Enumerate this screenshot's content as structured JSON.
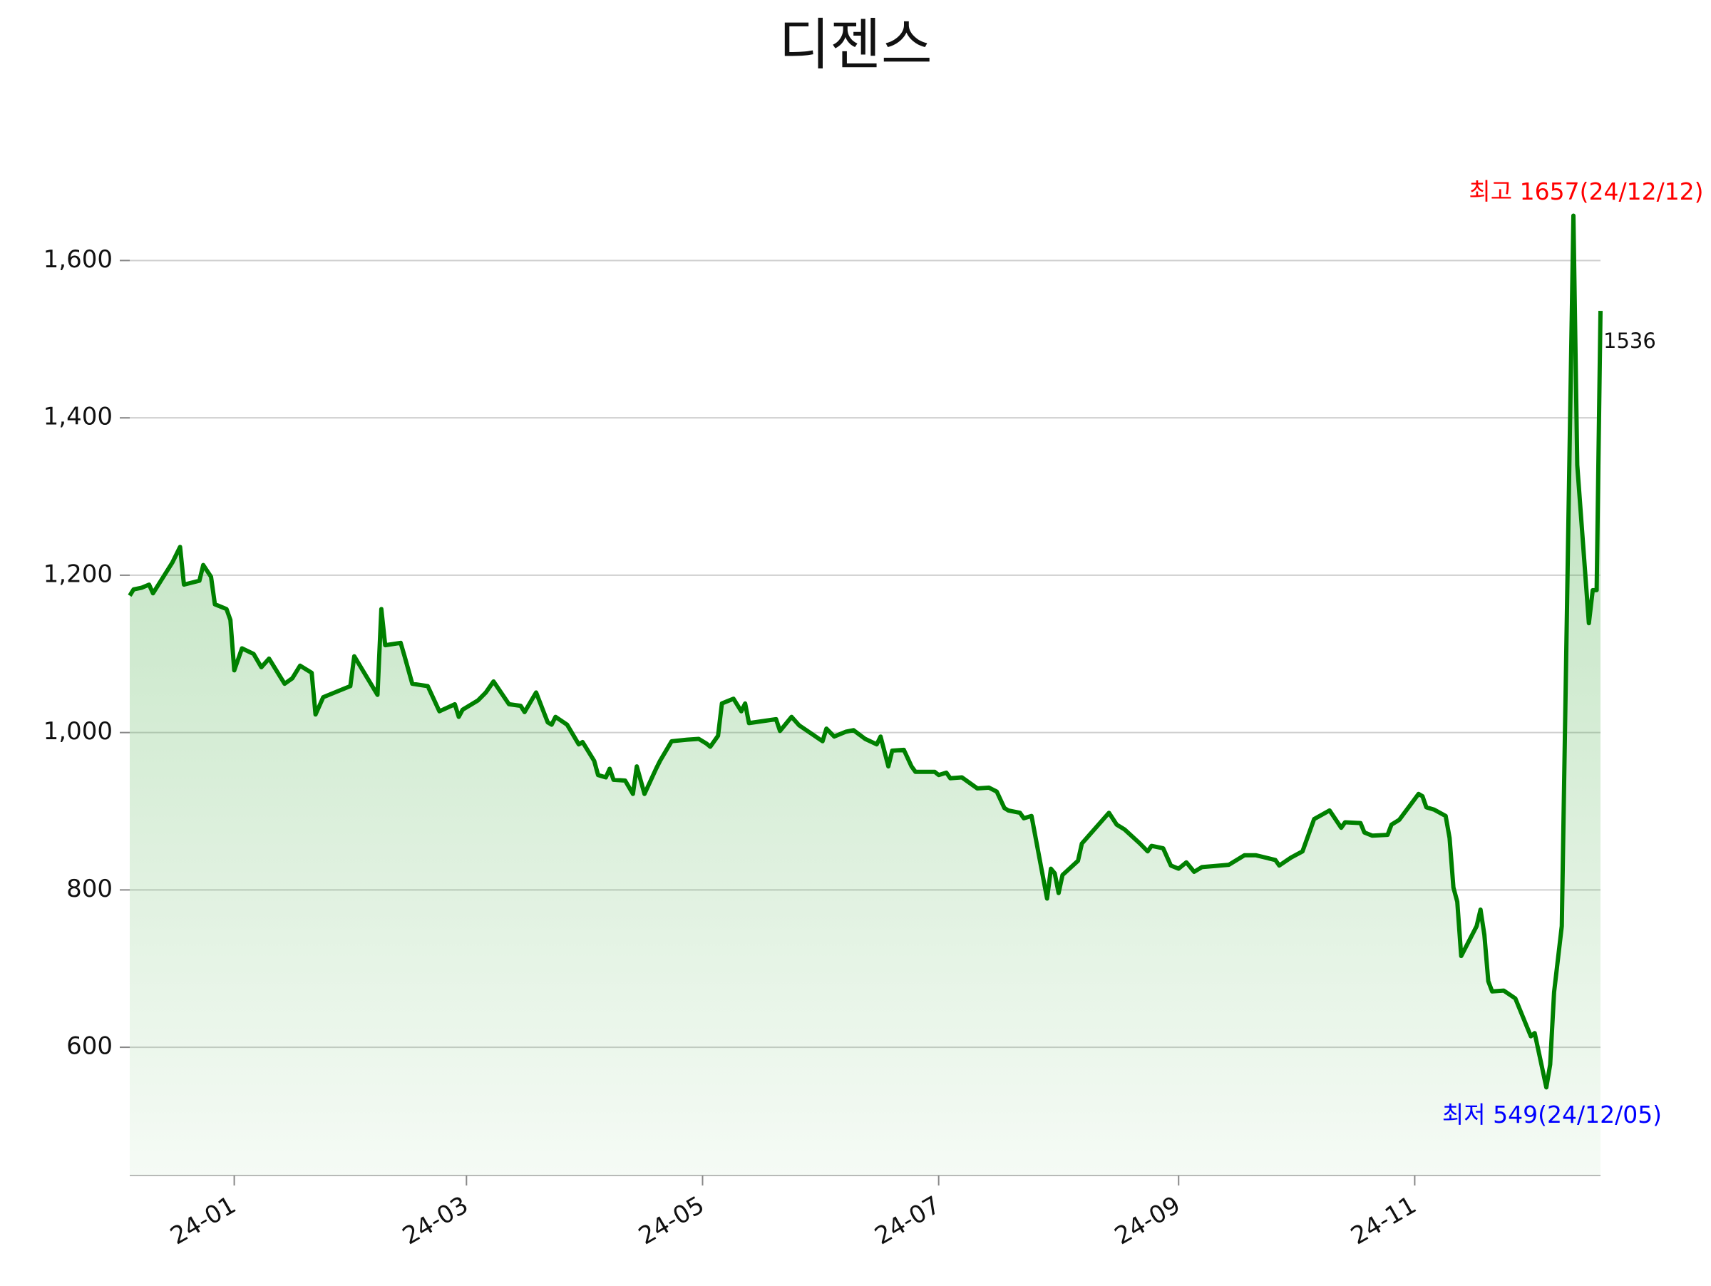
{
  "chart_data": {
    "type": "area-line",
    "title": "디젠스",
    "color": "green",
    "grid": true,
    "x": [
      "2023-12-05",
      "2023-12-06",
      "2023-12-08",
      "2023-12-10",
      "2023-12-11",
      "2023-12-16",
      "2023-12-18",
      "2023-12-19",
      "2023-12-23",
      "2023-12-24",
      "2023-12-26",
      "2023-12-27",
      "2023-12-30",
      "2023-12-31",
      "2024-01-01",
      "2024-01-03",
      "2024-01-06",
      "2024-01-08",
      "2024-01-10",
      "2024-01-14",
      "2024-01-16",
      "2024-01-18",
      "2024-01-21",
      "2024-01-22",
      "2024-01-24",
      "2024-01-29",
      "2024-01-31",
      "2024-02-01",
      "2024-02-07",
      "2024-02-08",
      "2024-02-09",
      "2024-02-13",
      "2024-02-14",
      "2024-02-16",
      "2024-02-20",
      "2024-02-23",
      "2024-02-27",
      "2024-02-28",
      "2024-02-29",
      "2024-03-04",
      "2024-03-06",
      "2024-03-08",
      "2024-03-12",
      "2024-03-15",
      "2024-03-16",
      "2024-03-19",
      "2024-03-22",
      "2024-03-23",
      "2024-03-24",
      "2024-03-27",
      "2024-03-30",
      "2024-03-31",
      "2024-04-03",
      "2024-04-04",
      "2024-04-06",
      "2024-04-07",
      "2024-04-08",
      "2024-04-11",
      "2024-04-13",
      "2024-04-14",
      "2024-04-16",
      "2024-04-19",
      "2024-04-20",
      "2024-04-23",
      "2024-04-27",
      "2024-04-30",
      "2024-05-02",
      "2024-05-03",
      "2024-05-05",
      "2024-05-06",
      "2024-05-09",
      "2024-05-11",
      "2024-05-12",
      "2024-05-13",
      "2024-05-20",
      "2024-05-21",
      "2024-05-24",
      "2024-05-26",
      "2024-06-01",
      "2024-06-02",
      "2024-06-04",
      "2024-06-07",
      "2024-06-09",
      "2024-06-12",
      "2024-06-15",
      "2024-06-16",
      "2024-06-18",
      "2024-06-19",
      "2024-06-22",
      "2024-06-24",
      "2024-06-25",
      "2024-06-30",
      "2024-07-01",
      "2024-07-03",
      "2024-07-04",
      "2024-07-07",
      "2024-07-11",
      "2024-07-14",
      "2024-07-16",
      "2024-07-18",
      "2024-07-19",
      "2024-07-22",
      "2024-07-23",
      "2024-07-25",
      "2024-07-29",
      "2024-07-30",
      "2024-07-31",
      "2024-08-01",
      "2024-08-02",
      "2024-08-06",
      "2024-08-07",
      "2024-08-14",
      "2024-08-16",
      "2024-08-18",
      "2024-08-22",
      "2024-08-24",
      "2024-08-25",
      "2024-08-28",
      "2024-08-30",
      "2024-09-01",
      "2024-09-03",
      "2024-09-05",
      "2024-09-07",
      "2024-09-14",
      "2024-09-18",
      "2024-09-21",
      "2024-09-26",
      "2024-09-27",
      "2024-09-30",
      "2024-10-03",
      "2024-10-06",
      "2024-10-10",
      "2024-10-13",
      "2024-10-14",
      "2024-10-18",
      "2024-10-19",
      "2024-10-21",
      "2024-10-25",
      "2024-10-26",
      "2024-10-28",
      "2024-11-02",
      "2024-11-03",
      "2024-11-04",
      "2024-11-06",
      "2024-11-09",
      "2024-11-10",
      "2024-11-11",
      "2024-11-12",
      "2024-11-13",
      "2024-11-17",
      "2024-11-18",
      "2024-11-19",
      "2024-11-20",
      "2024-11-21",
      "2024-11-24",
      "2024-11-27",
      "2024-12-01",
      "2024-12-02",
      "2024-12-05",
      "2024-12-06",
      "2024-12-07",
      "2024-12-09",
      "2024-12-12",
      "2024-12-13",
      "2024-12-16",
      "2024-12-17",
      "2024-12-18",
      "2024-12-19"
    ],
    "values": [
      1174,
      1182,
      1184,
      1188,
      1177,
      1216,
      1236,
      1188,
      1193,
      1213,
      1198,
      1163,
      1157,
      1143,
      1079,
      1107,
      1100,
      1083,
      1094,
      1062,
      1069,
      1085,
      1076,
      1023,
      1045,
      1055,
      1059,
      1097,
      1048,
      1157,
      1111,
      1114,
      1097,
      1062,
      1059,
      1027,
      1036,
      1020,
      1029,
      1041,
      1051,
      1065,
      1036,
      1034,
      1026,
      1051,
      1013,
      1010,
      1020,
      1010,
      985,
      988,
      964,
      946,
      943,
      954,
      940,
      939,
      922,
      957,
      922,
      954,
      964,
      989,
      991,
      992,
      986,
      982,
      996,
      1037,
      1043,
      1027,
      1037,
      1012,
      1017,
      1002,
      1020,
      1009,
      989,
      1005,
      995,
      1001,
      1003,
      992,
      985,
      995,
      957,
      977,
      978,
      957,
      950,
      950,
      946,
      949,
      942,
      943,
      929,
      930,
      925,
      904,
      901,
      898,
      891,
      894,
      789,
      827,
      821,
      796,
      819,
      837,
      859,
      898,
      883,
      877,
      859,
      849,
      856,
      853,
      831,
      827,
      835,
      823,
      829,
      832,
      844,
      844,
      838,
      831,
      841,
      849,
      890,
      901,
      879,
      886,
      885,
      873,
      869,
      870,
      883,
      889,
      922,
      919,
      905,
      902,
      894,
      866,
      803,
      785,
      716,
      754,
      775,
      743,
      684,
      671,
      672,
      662,
      614,
      618,
      549,
      578,
      670,
      754,
      1657,
      1340,
      1139,
      1181,
      1181,
      1536
    ],
    "xlim": [
      "2023-12-05",
      "2024-12-19"
    ],
    "xticks": [
      {
        "value": "2024-01-01",
        "label": "24-01"
      },
      {
        "value": "2024-03-01",
        "label": "24-03"
      },
      {
        "value": "2024-05-01",
        "label": "24-05"
      },
      {
        "value": "2024-07-01",
        "label": "24-07"
      },
      {
        "value": "2024-09-01",
        "label": "24-09"
      },
      {
        "value": "2024-11-01",
        "label": "24-11"
      }
    ],
    "ylim": [
      437,
      1720
    ],
    "yticks": [
      600,
      800,
      {
        "value": 1000,
        "label": "1,000"
      },
      {
        "value": 1200,
        "label": "1,200"
      },
      {
        "value": 1400,
        "label": "1,400"
      },
      {
        "value": 1600,
        "label": "1,600"
      }
    ],
    "high_label": "최고 1657(24/12/12)",
    "high_color": "red",
    "low_label": "최저 549(24/12/05)",
    "low_color": "blue"
  }
}
